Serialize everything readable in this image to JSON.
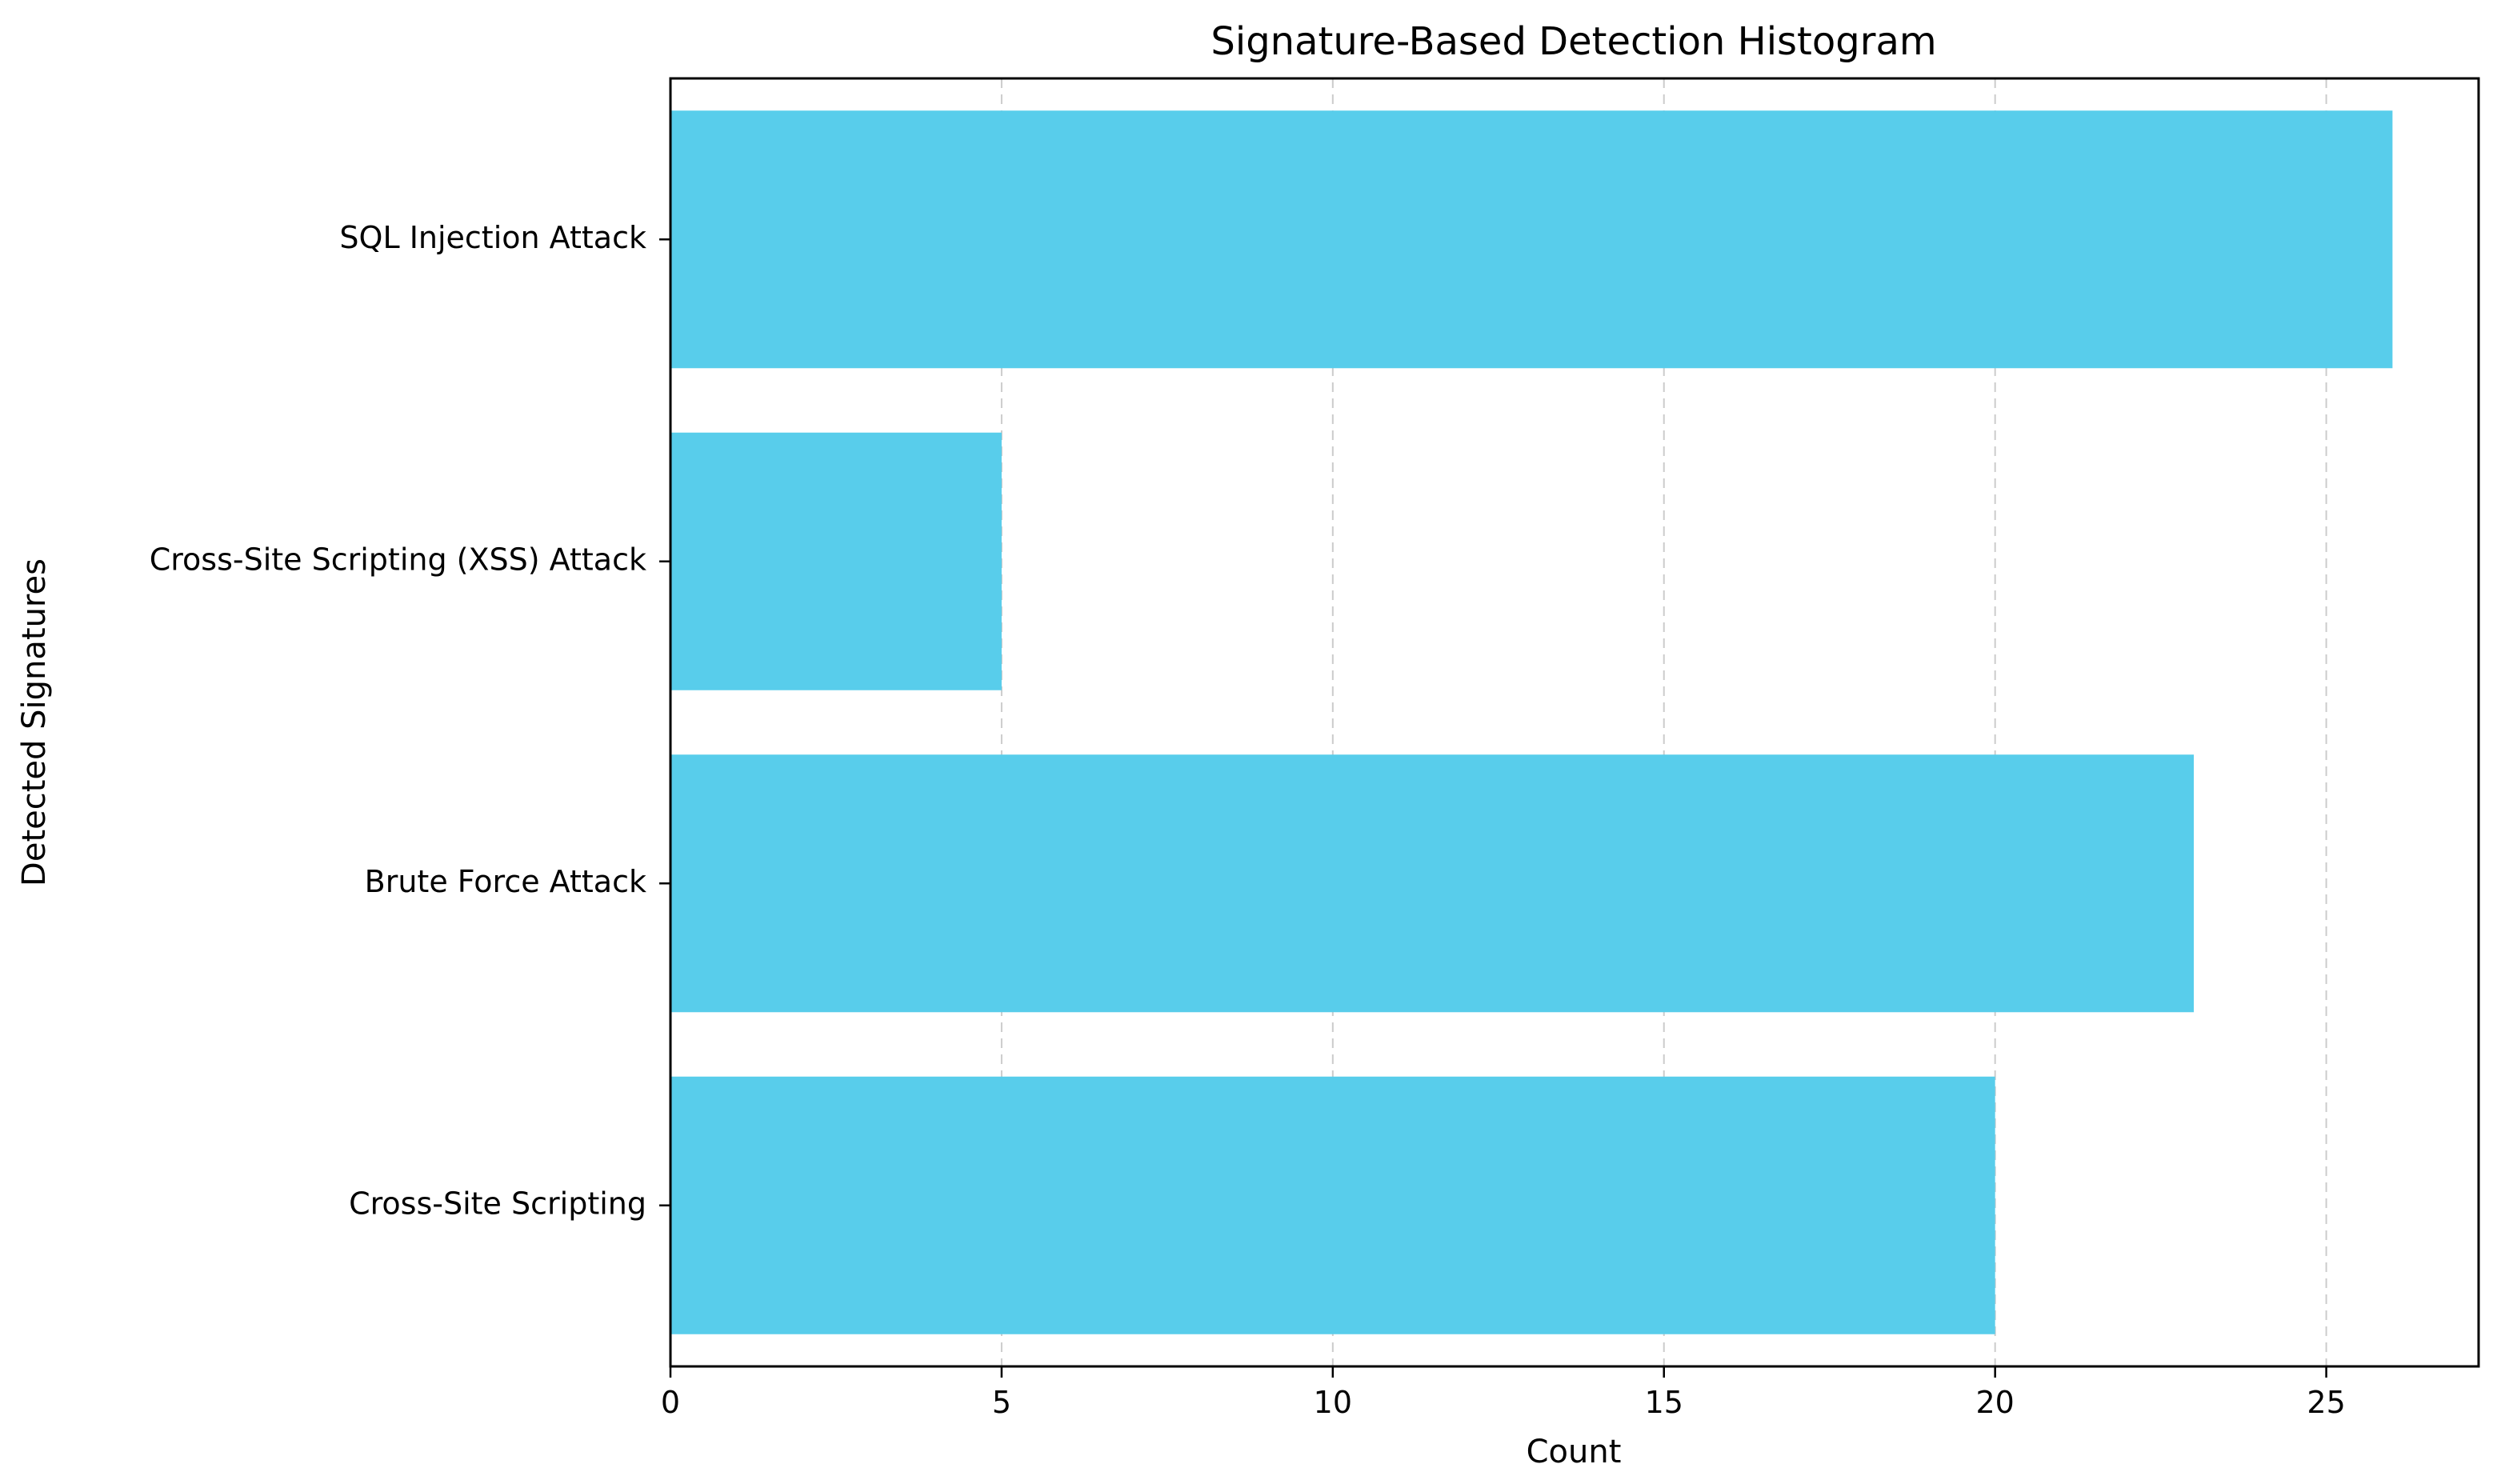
{
  "chart_data": {
    "type": "bar",
    "orientation": "horizontal",
    "title": "Signature-Based Detection Histogram",
    "xlabel": "Count",
    "ylabel": "Detected Signatures",
    "categories": [
      "SQL Injection Attack",
      "Cross-Site Scripting (XSS) Attack",
      "Brute Force Attack",
      "Cross-Site Scripting"
    ],
    "values": [
      26,
      5,
      23,
      20
    ],
    "xlim": [
      0,
      27.3
    ],
    "xticks": [
      0,
      5,
      10,
      15,
      20,
      25
    ],
    "grid": "vertical-dashed",
    "colors": {
      "bar": "#58CDEB",
      "grid": "#cccccc",
      "axis": "#000000"
    }
  }
}
